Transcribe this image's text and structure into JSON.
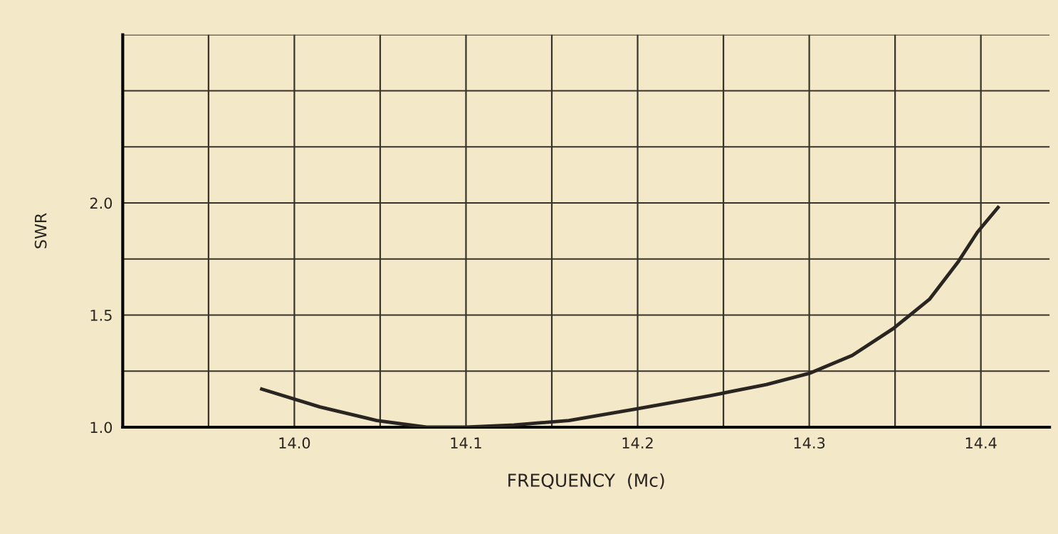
{
  "chart_data": {
    "type": "line",
    "xlabel": "FREQUENCY  (Mc)",
    "ylabel": "SWR",
    "x": [
      13.981,
      14.015,
      14.048,
      14.077,
      14.1,
      14.128,
      14.16,
      14.198,
      14.242,
      14.275,
      14.3,
      14.325,
      14.349,
      14.37,
      14.387,
      14.398,
      14.41
    ],
    "series": [
      {
        "color": "#2a2520",
        "values": [
          1.17,
          1.09,
          1.03,
          1.0,
          1.0,
          1.01,
          1.03,
          1.08,
          1.14,
          1.19,
          1.24,
          1.32,
          1.44,
          1.57,
          1.74,
          1.87,
          1.98
        ]
      }
    ],
    "xlim": [
      13.9,
      14.44
    ],
    "ylim": [
      1.0,
      2.75
    ],
    "xticks": [
      {
        "value": 13.95,
        "label": null
      },
      {
        "value": 14.0,
        "label": "14.0"
      },
      {
        "value": 14.05,
        "label": null
      },
      {
        "value": 14.1,
        "label": "14.1"
      },
      {
        "value": 14.15,
        "label": null
      },
      {
        "value": 14.2,
        "label": "14.2"
      },
      {
        "value": 14.25,
        "label": null
      },
      {
        "value": 14.3,
        "label": "14.3"
      },
      {
        "value": 14.35,
        "label": null
      },
      {
        "value": 14.4,
        "label": "14.4"
      }
    ],
    "yticks": [
      {
        "value": 1.0,
        "label": "1.0"
      },
      {
        "value": 1.25,
        "label": null
      },
      {
        "value": 1.5,
        "label": "1.5"
      },
      {
        "value": 1.75,
        "label": null
      },
      {
        "value": 2.0,
        "label": "2.0"
      },
      {
        "value": 2.25,
        "label": null
      },
      {
        "value": 2.5,
        "label": null
      },
      {
        "value": 2.75,
        "label": null
      }
    ],
    "grid": true,
    "marker": "none",
    "line_style": "solid"
  }
}
